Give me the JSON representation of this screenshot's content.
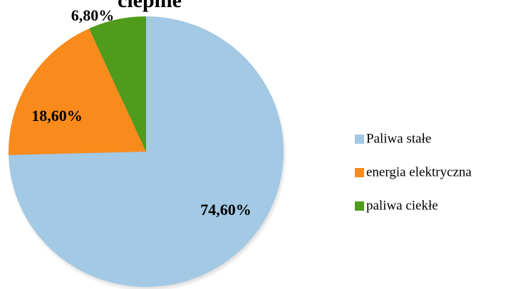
{
  "chart_data": {
    "type": "pie",
    "title": "cieplne",
    "categories": [
      "Paliwa stałe",
      "energia elektryczna",
      "paliwa ciekłe"
    ],
    "values": [
      74.6,
      18.6,
      6.8
    ],
    "value_labels": [
      "74,60%",
      "18,60%",
      "6,80%"
    ],
    "colors": [
      "#a3c9e4",
      "#f98b1c",
      "#4f9b1b"
    ],
    "legend": "right"
  }
}
